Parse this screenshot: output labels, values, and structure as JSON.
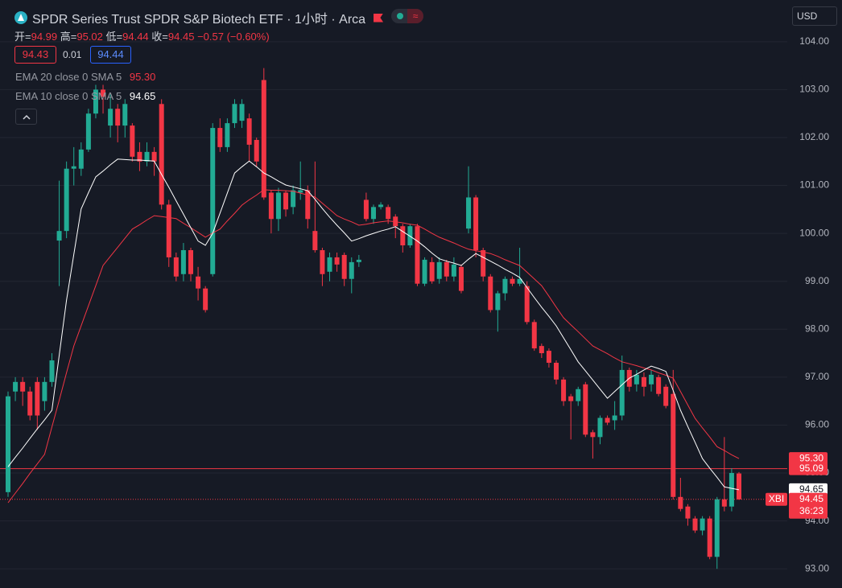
{
  "header": {
    "title": "SPDR Series Trust SPDR S&P Biotech ETF · 1小时 · Arca",
    "currency": "USD",
    "ohlc": [
      {
        "label": "开=",
        "value": "94.99"
      },
      {
        "label": "高=",
        "value": "95.02"
      },
      {
        "label": "低=",
        "value": "94.44"
      },
      {
        "label": "收=",
        "value": "94.45"
      }
    ],
    "change": "−0.57 (−0.60%)",
    "quote": {
      "bid": "94.43",
      "spread": "0.01",
      "ask": "94.44"
    }
  },
  "chart_data": {
    "type": "candlestick",
    "up_color": "#22ab94",
    "down_color": "#f23645",
    "ylim": [
      92.6,
      104.87
    ],
    "yticks": [
      {
        "value": 93,
        "label": "93.00"
      },
      {
        "value": 94,
        "label": "94.00"
      },
      {
        "value": 95,
        "label": "95.00"
      },
      {
        "value": 96,
        "label": "96.00"
      },
      {
        "value": 97,
        "label": "97.00"
      },
      {
        "value": 98,
        "label": "98.00"
      },
      {
        "value": 99,
        "label": "99.00"
      },
      {
        "value": 100,
        "label": "100.00"
      },
      {
        "value": 101,
        "label": "101.00"
      },
      {
        "value": 102,
        "label": "102.00"
      },
      {
        "value": 103,
        "label": "103.00"
      },
      {
        "value": 104,
        "label": "104.00"
      }
    ],
    "grid": true,
    "open": [
      94.6,
      96.7,
      96.9,
      96.7,
      96.9,
      96.5,
      96.9,
      99.85,
      100.05,
      101.35,
      101.35,
      101.75,
      102.5,
      103.0,
      102.25,
      102.6,
      102.25,
      102.25,
      101.7,
      101.5,
      101.7,
      102.7,
      100.6,
      99.5,
      99.15,
      99.65,
      99.1,
      98.85,
      99.15,
      102.2,
      101.8,
      102.3,
      102.35,
      102.4,
      101.95,
      103.2,
      100.85,
      100.3,
      100.85,
      100.55,
      100.85,
      100.9,
      100.05,
      99.65,
      99.2,
      99.5,
      99.55,
      99.05,
      99.4,
      100.7,
      100.3,
      100.55,
      100.55,
      100.35,
      100.15,
      99.75,
      100.15,
      98.95,
      99.4,
      99.05,
      99.4,
      99.1,
      99.3,
      100.1,
      100.75,
      99.65,
      99.1,
      98.4,
      98.75,
      99.05,
      98.95,
      98.9,
      98.15,
      97.65,
      97.55,
      97.3,
      96.95,
      96.6,
      96.5,
      96.85,
      95.85,
      95.75,
      96.15,
      96.1,
      96.2,
      97.15,
      96.85,
      97.0,
      96.85,
      97.0,
      96.8,
      96.65,
      94.5,
      94.3,
      94.05,
      93.8,
      94.05,
      93.25,
      94.45,
      94.3,
      94.99
    ],
    "high": [
      96.7,
      97.0,
      97.0,
      96.8,
      97.0,
      97.0,
      97.5,
      101.1,
      101.5,
      101.8,
      101.9,
      102.6,
      103.1,
      103.1,
      102.9,
      102.7,
      102.8,
      102.3,
      101.9,
      101.9,
      101.8,
      102.8,
      100.7,
      99.6,
      99.8,
      99.7,
      99.3,
      98.9,
      102.3,
      102.4,
      102.4,
      102.8,
      102.8,
      102.5,
      102.0,
      103.45,
      100.9,
      100.95,
      100.9,
      101.0,
      101.5,
      101.0,
      101.5,
      99.7,
      99.6,
      99.6,
      99.6,
      99.5,
      99.55,
      100.85,
      100.6,
      100.65,
      100.6,
      100.4,
      100.2,
      100.2,
      100.2,
      99.5,
      99.5,
      99.5,
      99.45,
      99.5,
      99.35,
      101.4,
      100.8,
      99.7,
      99.15,
      98.8,
      99.1,
      99.1,
      99.7,
      99.0,
      98.2,
      97.7,
      97.6,
      97.35,
      97.0,
      96.65,
      96.8,
      96.9,
      95.9,
      96.2,
      96.2,
      96.5,
      97.45,
      97.2,
      97.15,
      97.1,
      97.15,
      97.05,
      96.85,
      97.15,
      94.9,
      94.35,
      94.1,
      94.1,
      94.1,
      94.5,
      95.75,
      95.1,
      95.02
    ],
    "low": [
      94.5,
      96.5,
      96.4,
      96.1,
      95.9,
      96.3,
      96.8,
      98.9,
      99.9,
      101.0,
      101.2,
      101.7,
      102.4,
      102.5,
      102.0,
      101.9,
      102.0,
      101.5,
      101.3,
      101.4,
      101.2,
      100.5,
      99.3,
      99.0,
      99.0,
      99.0,
      98.6,
      98.35,
      99.1,
      101.7,
      101.7,
      102.2,
      102.2,
      101.5,
      101.4,
      100.7,
      100.0,
      100.05,
      100.35,
      100.4,
      100.7,
      100.1,
      99.6,
      98.9,
      99.0,
      99.2,
      98.9,
      98.75,
      99.3,
      100.25,
      100.2,
      100.5,
      100.2,
      99.9,
      99.6,
      99.7,
      98.9,
      98.9,
      98.95,
      98.95,
      99.0,
      99.0,
      98.75,
      100.0,
      99.5,
      99.0,
      98.35,
      97.95,
      98.6,
      98.9,
      98.9,
      98.1,
      97.55,
      97.4,
      97.2,
      96.85,
      96.4,
      95.7,
      96.4,
      95.75,
      95.3,
      95.6,
      96.0,
      95.9,
      96.1,
      96.7,
      96.7,
      96.6,
      96.7,
      96.6,
      96.35,
      94.45,
      94.2,
      93.9,
      93.75,
      93.7,
      93.2,
      93.0,
      94.2,
      94.2,
      94.44
    ],
    "close": [
      96.6,
      96.9,
      96.7,
      96.2,
      96.2,
      96.9,
      97.35,
      100.05,
      101.35,
      101.4,
      101.75,
      102.5,
      103.0,
      102.85,
      102.6,
      102.25,
      102.7,
      101.6,
      101.5,
      101.7,
      101.5,
      100.6,
      99.5,
      99.1,
      99.65,
      99.15,
      98.85,
      98.4,
      102.2,
      101.8,
      102.3,
      102.7,
      102.7,
      101.85,
      101.5,
      100.75,
      100.3,
      100.85,
      100.5,
      100.9,
      100.9,
      100.3,
      99.65,
      99.15,
      99.5,
      99.35,
      99.05,
      99.4,
      99.45,
      100.3,
      100.55,
      100.6,
      100.3,
      100.15,
      99.75,
      100.15,
      98.95,
      99.45,
      99.0,
      99.4,
      99.1,
      99.35,
      98.8,
      100.75,
      99.65,
      99.1,
      98.4,
      98.75,
      99.05,
      98.95,
      99.05,
      98.15,
      97.6,
      97.5,
      97.3,
      96.95,
      96.5,
      96.5,
      96.75,
      95.8,
      95.75,
      96.15,
      96.05,
      96.2,
      97.15,
      96.8,
      97.05,
      96.8,
      97.05,
      96.65,
      96.4,
      94.5,
      94.25,
      94.05,
      93.8,
      94.05,
      93.25,
      94.45,
      94.3,
      95.0,
      94.45
    ],
    "series": [
      {
        "name": "EMA 20 close 0 SMA 5",
        "color": "#f23645",
        "last_label": "95.30",
        "label_color": "#ffffff",
        "values": [
          94.38,
          94.58,
          94.78,
          94.99,
          95.19,
          95.39,
          95.96,
          96.52,
          97.09,
          97.65,
          98.07,
          98.49,
          98.91,
          99.33,
          99.52,
          99.71,
          99.9,
          100.09,
          100.18,
          100.28,
          100.37,
          100.35,
          100.33,
          100.31,
          100.21,
          100.12,
          100.02,
          99.92,
          100.01,
          100.09,
          100.26,
          100.42,
          100.59,
          100.7,
          100.8,
          100.91,
          100.9,
          100.9,
          100.89,
          100.88,
          100.84,
          100.8,
          100.76,
          100.63,
          100.5,
          100.37,
          100.3,
          100.24,
          100.17,
          100.19,
          100.22,
          100.24,
          100.26,
          100.24,
          100.22,
          100.19,
          100.17,
          100.09,
          100.0,
          99.92,
          99.86,
          99.8,
          99.73,
          99.67,
          99.64,
          99.61,
          99.58,
          99.52,
          99.45,
          99.39,
          99.33,
          99.19,
          99.05,
          98.91,
          98.69,
          98.46,
          98.24,
          98.09,
          97.95,
          97.8,
          97.65,
          97.57,
          97.49,
          97.4,
          97.32,
          97.28,
          97.24,
          97.19,
          97.15,
          97.09,
          97.04,
          96.98,
          96.7,
          96.42,
          96.14,
          95.94,
          95.75,
          95.55,
          95.47,
          95.38,
          95.3
        ]
      },
      {
        "name": "EMA 10 close 0 SMA 5",
        "color": "#ffffff",
        "last_label": "94.65",
        "label_color": "#131722",
        "values": [
          95.13,
          95.33,
          95.52,
          95.72,
          95.92,
          96.11,
          96.31,
          97.46,
          98.6,
          99.56,
          100.51,
          100.85,
          101.18,
          101.3,
          101.43,
          101.55,
          101.54,
          101.53,
          101.53,
          101.52,
          101.51,
          101.23,
          100.96,
          100.68,
          100.4,
          100.12,
          99.84,
          99.75,
          100.0,
          100.42,
          100.84,
          101.26,
          101.39,
          101.51,
          101.39,
          101.26,
          101.18,
          101.09,
          101.01,
          100.97,
          100.93,
          100.89,
          100.71,
          100.52,
          100.34,
          100.17,
          100.01,
          99.84,
          99.89,
          99.95,
          100.0,
          100.05,
          100.09,
          100.14,
          100.04,
          99.94,
          99.84,
          99.72,
          99.59,
          99.47,
          99.42,
          99.38,
          99.33,
          99.46,
          99.58,
          99.5,
          99.42,
          99.34,
          99.25,
          99.17,
          99.08,
          98.87,
          98.66,
          98.46,
          98.27,
          98.07,
          97.82,
          97.57,
          97.32,
          97.13,
          96.94,
          96.75,
          96.56,
          96.7,
          96.84,
          96.98,
          97.06,
          97.15,
          97.23,
          97.18,
          97.12,
          96.72,
          96.31,
          95.97,
          95.64,
          95.3,
          95.1,
          94.91,
          94.71,
          94.68,
          94.65
        ]
      }
    ],
    "reference_line": {
      "value": 95.09,
      "label": "95.09",
      "color": "#f23645"
    },
    "last_price": {
      "value": 94.45,
      "label": "94.45",
      "symbol": "XBI",
      "countdown": "36:23",
      "color": "#f23645"
    }
  }
}
